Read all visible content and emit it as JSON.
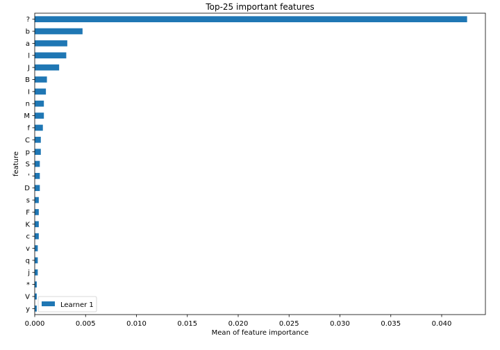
{
  "chart_data": {
    "type": "bar",
    "orientation": "horizontal",
    "title": "Top-25 important features",
    "xlabel": "Mean of feature importance",
    "ylabel": "feature",
    "xlim": [
      0,
      0.0443
    ],
    "xticks": [
      "0.000",
      "0.005",
      "0.010",
      "0.015",
      "0.020",
      "0.025",
      "0.030",
      "0.035",
      "0.040"
    ],
    "grid": false,
    "legend": {
      "position": "lower-left",
      "entries": [
        "Learner 1"
      ]
    },
    "color": "#1f77b4",
    "categories": [
      "?",
      "b",
      "a",
      "l",
      "J",
      "B",
      "I",
      "n",
      "M",
      "f",
      "C",
      "p",
      "S",
      "'",
      "D",
      "s",
      "F",
      "K",
      "c",
      "v",
      "q",
      "j",
      "*",
      "V",
      "y"
    ],
    "series": [
      {
        "name": "Learner 1",
        "values": [
          0.0425,
          0.0047,
          0.0032,
          0.0031,
          0.0024,
          0.0012,
          0.0011,
          0.0009,
          0.0009,
          0.0008,
          0.0006,
          0.0006,
          0.0005,
          0.0005,
          0.0005,
          0.0004,
          0.0004,
          0.0004,
          0.0004,
          0.0003,
          0.0003,
          0.0003,
          0.0002,
          0.0002,
          0.0002
        ]
      }
    ]
  }
}
